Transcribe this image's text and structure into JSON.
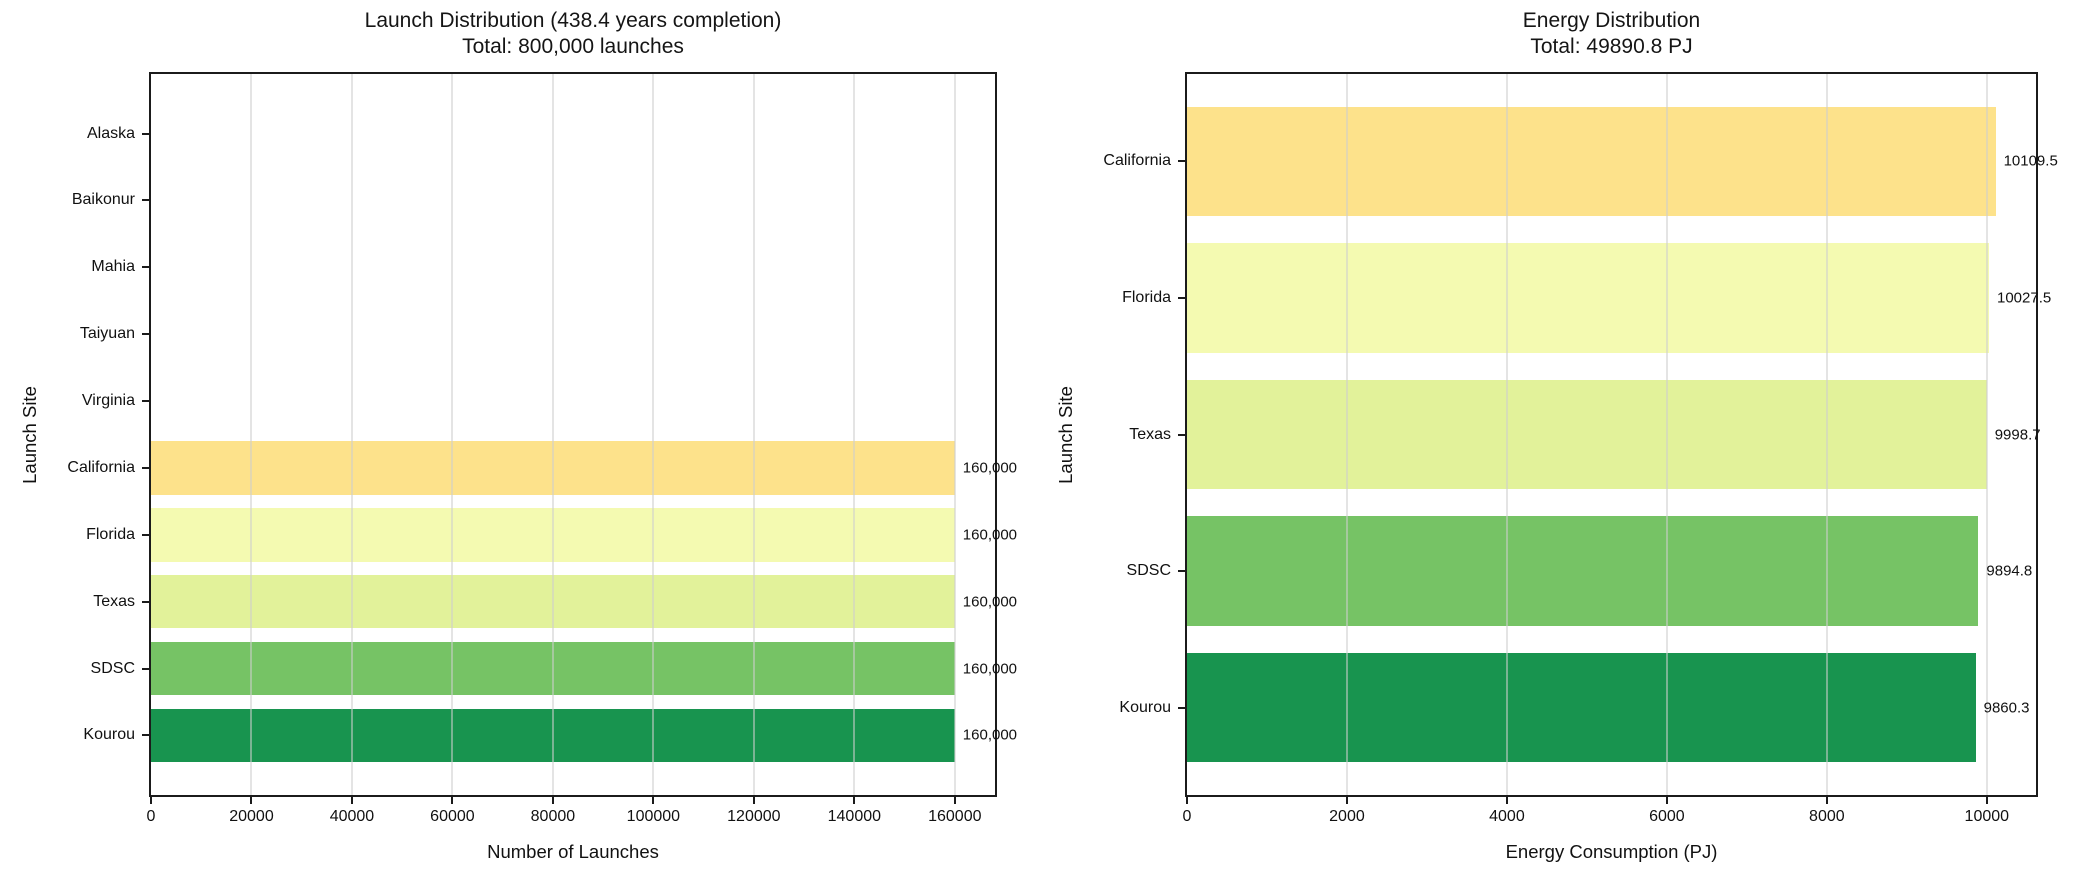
{
  "chart_data": [
    {
      "type": "bar",
      "orientation": "horizontal",
      "title": "Launch Distribution (438.4 years completion)",
      "subtitle": "Total: 800,000 launches",
      "xlabel": "Number of Launches",
      "ylabel": "Launch Site",
      "categories": [
        "Alaska",
        "Baikonur",
        "Mahia",
        "Taiyuan",
        "Virginia",
        "California",
        "Florida",
        "Texas",
        "SDSC",
        "Kourou"
      ],
      "values": [
        0,
        0,
        0,
        0,
        0,
        160000,
        160000,
        160000,
        160000,
        160000
      ],
      "bar_labels": [
        null,
        null,
        null,
        null,
        null,
        "160,000",
        "160,000",
        "160,000",
        "160,000",
        "160,000"
      ],
      "bar_colors": [
        null,
        null,
        null,
        null,
        null,
        "#fde28b",
        "#f4fab1",
        "#e2f29a",
        "#76c365",
        "#18944f"
      ],
      "xticks": [
        0,
        20000,
        40000,
        60000,
        80000,
        100000,
        120000,
        140000,
        160000
      ],
      "xtick_labels": [
        "0",
        "20000",
        "40000",
        "60000",
        "80000",
        "100000",
        "120000",
        "140000",
        "160000"
      ],
      "xlim": [
        0,
        168000
      ],
      "grid": true,
      "legend": null
    },
    {
      "type": "bar",
      "orientation": "horizontal",
      "title": "Energy Distribution",
      "subtitle": "Total: 49890.8 PJ",
      "xlabel": "Energy Consumption (PJ)",
      "ylabel": "Launch Site",
      "categories": [
        "California",
        "Florida",
        "Texas",
        "SDSC",
        "Kourou"
      ],
      "values": [
        10109.5,
        10027.5,
        9998.7,
        9894.8,
        9860.3
      ],
      "bar_labels": [
        "10109.5",
        "10027.5",
        "9998.7",
        "9894.8",
        "9860.3"
      ],
      "bar_colors": [
        "#fde28b",
        "#f4fab1",
        "#e2f29a",
        "#76c365",
        "#18944f"
      ],
      "xticks": [
        0,
        2000,
        4000,
        6000,
        8000,
        10000
      ],
      "xtick_labels": [
        "0",
        "2000",
        "4000",
        "6000",
        "8000",
        "10000"
      ],
      "xlim": [
        0,
        10615
      ],
      "grid": true,
      "legend": null
    }
  ],
  "style": {
    "gridline_color": "#cdcdcd",
    "spine_color": "#1b1b1b",
    "text_color": "#111111",
    "background_color": "#ffffff"
  }
}
